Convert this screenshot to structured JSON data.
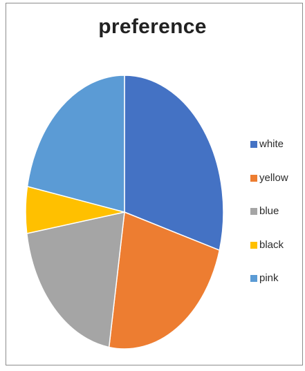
{
  "chart_data": {
    "type": "pie",
    "title": "preference",
    "categories": [
      "white",
      "yellow",
      "blue",
      "black",
      "pink"
    ],
    "values": [
      29.5,
      23,
      20,
      5.5,
      22
    ],
    "colors": [
      "#4472C4",
      "#ED7D31",
      "#A5A5A5",
      "#FFC000",
      "#5B9BD5"
    ],
    "legend_position": "right"
  }
}
